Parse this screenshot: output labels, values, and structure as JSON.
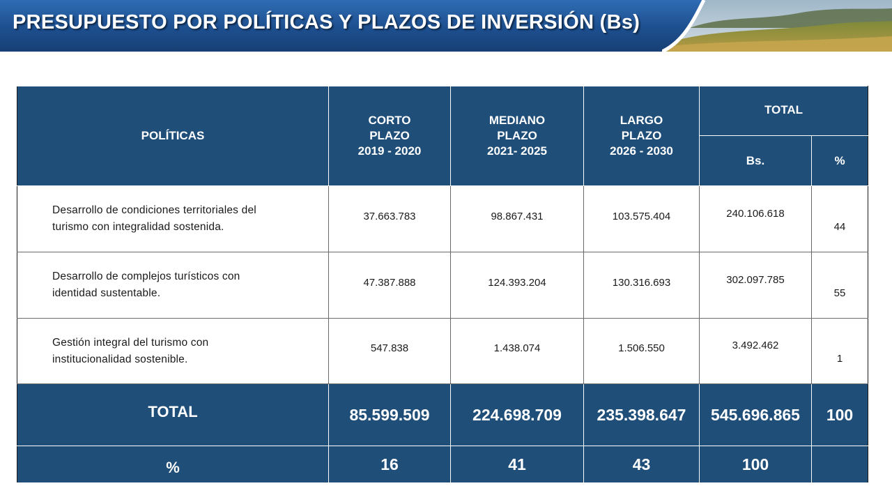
{
  "title": "PRESUPUESTO POR POLÍTICAS Y PLAZOS DE INVERSIÓN (Bs)",
  "colors": {
    "banner_blue": "#1d4f8f",
    "header_blue": "#1f4e79",
    "white": "#ffffff"
  },
  "table": {
    "headers": {
      "politicas": "POLÍTICAS",
      "corto": [
        "CORTO",
        "PLAZO",
        "2019 - 2020"
      ],
      "mediano": [
        "MEDIANO",
        "PLAZO",
        "2021- 2025"
      ],
      "largo": [
        "LARGO",
        "PLAZO",
        "2026 - 2030"
      ],
      "total": "TOTAL",
      "total_bs": "Bs.",
      "total_pct": "%"
    },
    "rows": [
      {
        "politica": [
          "Desarrollo de condiciones territoriales del",
          "turismo con integralidad sostenida."
        ],
        "corto": "37.663.783",
        "mediano": "98.867.431",
        "largo": "103.575.404",
        "total_bs": "240.106.618",
        "total_pct": "44"
      },
      {
        "politica": [
          "Desarrollo de complejos turísticos con",
          "identidad sustentable."
        ],
        "corto": "47.387.888",
        "mediano": "124.393.204",
        "largo": "130.316.693",
        "total_bs": "302.097.785",
        "total_pct": "55"
      },
      {
        "politica": [
          "Gestión integral del turismo con",
          "institucionalidad sostenible."
        ],
        "corto": "547.838",
        "mediano": "1.438.074",
        "largo": "1.506.550",
        "total_bs": "3.492.462",
        "total_pct": "1"
      }
    ],
    "total_row": {
      "label": "TOTAL",
      "corto": "85.599.509",
      "mediano": "224.698.709",
      "largo": "235.398.647",
      "total_bs": "545.696.865",
      "total_pct": "100"
    },
    "pct_row": {
      "label": "%",
      "corto": "16",
      "mediano": "41",
      "largo": "43",
      "total_bs": "100",
      "total_pct": ""
    }
  }
}
